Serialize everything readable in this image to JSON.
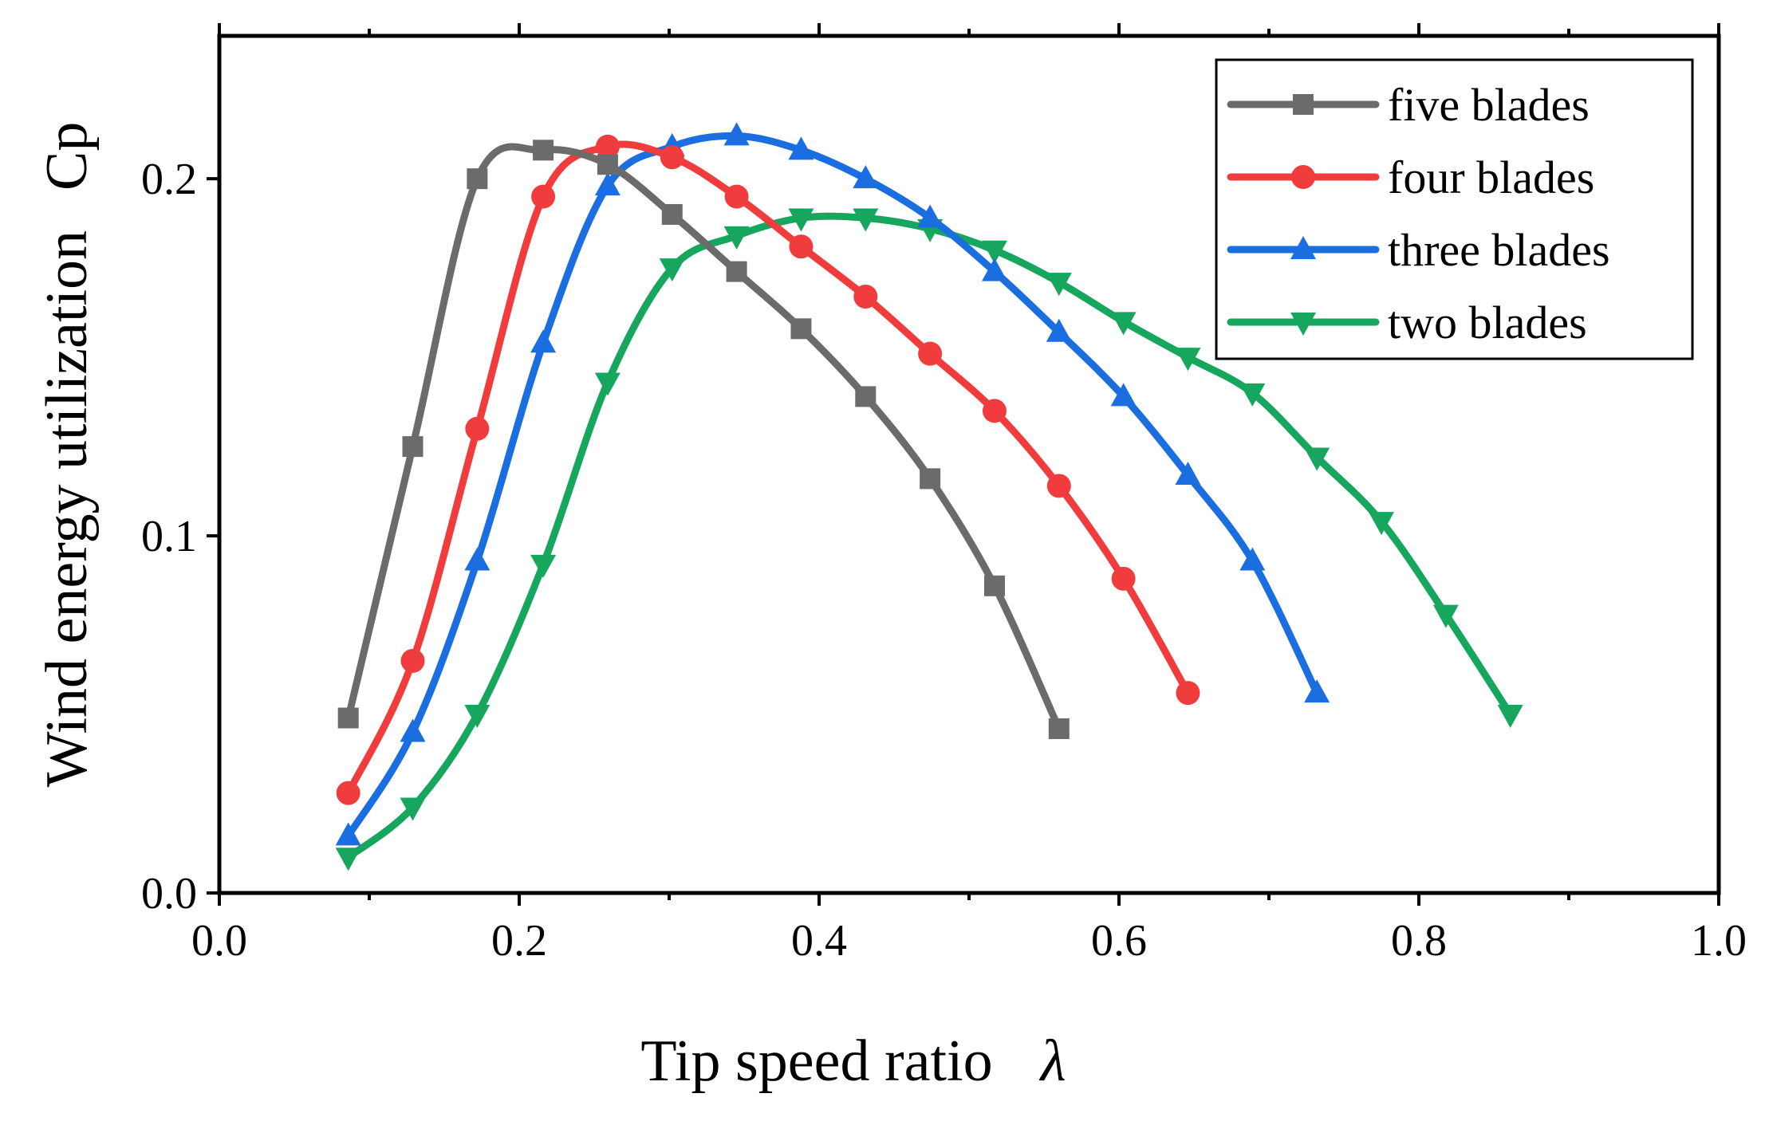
{
  "chart_data": {
    "type": "line",
    "title": "",
    "xlabel": "Tip speed ratio",
    "xlabel_symbol": "λ",
    "ylabel": "Wind energy utilization",
    "ylabel_symbol": "Cp",
    "xlim": [
      0.0,
      1.0
    ],
    "ylim": [
      0.0,
      0.24
    ],
    "xticks": [
      0.0,
      0.2,
      0.4,
      0.6,
      0.8,
      1.0
    ],
    "xtick_labels": [
      "0.0",
      "0.2",
      "0.4",
      "0.6",
      "0.8",
      "1.0"
    ],
    "yticks": [
      0.0,
      0.1,
      0.2
    ],
    "ytick_labels": [
      "0.0",
      "0.1",
      "0.2"
    ],
    "grid": false,
    "legend_position": "top-right",
    "series": [
      {
        "name": "five blades",
        "color": "#6b6b6b",
        "marker": "square",
        "x": [
          0.086,
          0.129,
          0.172,
          0.216,
          0.259,
          0.302,
          0.345,
          0.388,
          0.431,
          0.474,
          0.517,
          0.56
        ],
        "y": [
          0.049,
          0.125,
          0.2,
          0.208,
          0.204,
          0.19,
          0.174,
          0.158,
          0.139,
          0.116,
          0.086,
          0.046
        ]
      },
      {
        "name": "four blades",
        "color": "#f03c3c",
        "marker": "circle",
        "x": [
          0.086,
          0.129,
          0.172,
          0.216,
          0.259,
          0.302,
          0.345,
          0.388,
          0.431,
          0.474,
          0.517,
          0.56,
          0.603,
          0.646
        ],
        "y": [
          0.028,
          0.065,
          0.13,
          0.195,
          0.209,
          0.206,
          0.195,
          0.181,
          0.167,
          0.151,
          0.135,
          0.114,
          0.088,
          0.056
        ]
      },
      {
        "name": "three blades",
        "color": "#1a6ee0",
        "marker": "triangle-up",
        "x": [
          0.086,
          0.129,
          0.172,
          0.216,
          0.259,
          0.302,
          0.345,
          0.388,
          0.431,
          0.474,
          0.517,
          0.56,
          0.603,
          0.646,
          0.689,
          0.732
        ],
        "y": [
          0.016,
          0.045,
          0.093,
          0.154,
          0.198,
          0.209,
          0.212,
          0.208,
          0.2,
          0.189,
          0.174,
          0.157,
          0.139,
          0.117,
          0.093,
          0.056
        ]
      },
      {
        "name": "two blades",
        "color": "#16a65e",
        "marker": "triangle-down",
        "x": [
          0.086,
          0.129,
          0.172,
          0.216,
          0.259,
          0.302,
          0.345,
          0.388,
          0.431,
          0.474,
          0.517,
          0.56,
          0.603,
          0.646,
          0.689,
          0.732,
          0.775,
          0.818,
          0.861
        ],
        "y": [
          0.01,
          0.024,
          0.05,
          0.092,
          0.143,
          0.175,
          0.184,
          0.189,
          0.189,
          0.186,
          0.18,
          0.171,
          0.16,
          0.15,
          0.14,
          0.122,
          0.104,
          0.078,
          0.05
        ]
      }
    ]
  }
}
